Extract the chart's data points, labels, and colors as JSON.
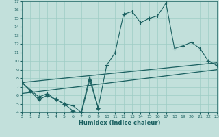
{
  "xlabel": "Humidex (Indice chaleur)",
  "xlim": [
    0,
    23
  ],
  "ylim": [
    4,
    17
  ],
  "xticks": [
    0,
    1,
    2,
    3,
    4,
    5,
    6,
    7,
    8,
    9,
    10,
    11,
    12,
    13,
    14,
    15,
    16,
    17,
    18,
    19,
    20,
    21,
    22,
    23
  ],
  "yticks": [
    4,
    5,
    6,
    7,
    8,
    9,
    10,
    11,
    12,
    13,
    14,
    15,
    16,
    17
  ],
  "bg_color": "#c2e0db",
  "grid_color": "#9eccc5",
  "line_color": "#1a6060",
  "series": [
    {
      "x": [
        0,
        2,
        3,
        4,
        5,
        6,
        7,
        8,
        9,
        10,
        11,
        12,
        13,
        14,
        15,
        16,
        17,
        18,
        19,
        20,
        21,
        22,
        23
      ],
      "y": [
        7.5,
        5.8,
        6.2,
        5.5,
        5.0,
        4.8,
        4.0,
        8.2,
        4.5,
        9.5,
        11.0,
        15.5,
        15.8,
        14.5,
        15.0,
        15.3,
        16.8,
        11.5,
        11.8,
        12.2,
        11.5,
        10.0,
        9.5
      ],
      "marker": "+",
      "markersize": 4,
      "linewidth": 0.8
    },
    {
      "x": [
        0,
        1,
        2,
        3,
        4,
        5,
        6,
        7,
        8,
        9
      ],
      "y": [
        7.5,
        6.5,
        5.5,
        6.0,
        5.5,
        5.0,
        4.2,
        3.8,
        7.8,
        4.5
      ],
      "marker": "D",
      "markersize": 2.5,
      "linewidth": 0.8
    },
    {
      "x": [
        0,
        23
      ],
      "y": [
        6.2,
        9.0
      ],
      "marker": null,
      "markersize": 0,
      "linewidth": 0.9
    },
    {
      "x": [
        0,
        23
      ],
      "y": [
        7.5,
        9.8
      ],
      "marker": null,
      "markersize": 0,
      "linewidth": 0.9
    }
  ]
}
